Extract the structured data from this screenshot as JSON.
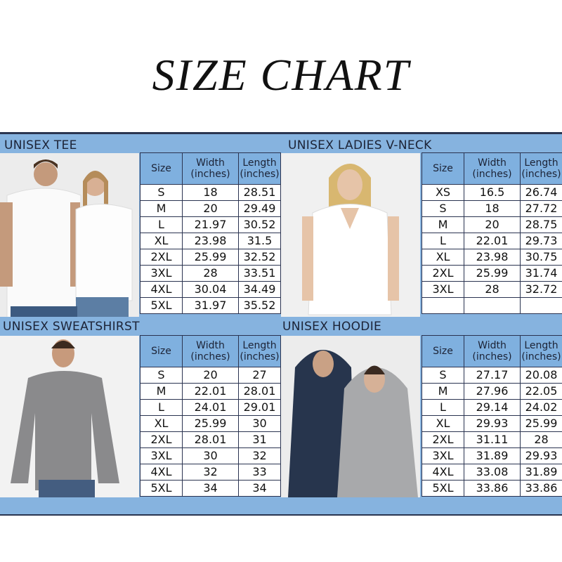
{
  "title": "SIZE CHART",
  "colors": {
    "band": "#86b3df",
    "header_cell": "#7fb0df",
    "border": "#2a3350"
  },
  "header": {
    "size": "Size",
    "width": "Width (inches)",
    "length": "Length (inches)"
  },
  "sections": [
    {
      "label": "UNISEX TEE",
      "photo": "couple-white-tees-photo",
      "rows": [
        [
          "S",
          "18",
          "28.51"
        ],
        [
          "M",
          "20",
          "29.49"
        ],
        [
          "L",
          "21.97",
          "30.52"
        ],
        [
          "XL",
          "23.98",
          "31.5"
        ],
        [
          "2XL",
          "25.99",
          "32.52"
        ],
        [
          "3XL",
          "28",
          "33.51"
        ],
        [
          "4XL",
          "30.04",
          "34.49"
        ],
        [
          "5XL",
          "31.97",
          "35.52"
        ]
      ]
    },
    {
      "label": "UNISEX LADIES V-NECK",
      "photo": "woman-white-vneck-photo",
      "rows": [
        [
          "XS",
          "16.5",
          "26.74"
        ],
        [
          "S",
          "18",
          "27.72"
        ],
        [
          "M",
          "20",
          "28.75"
        ],
        [
          "L",
          "22.01",
          "29.73"
        ],
        [
          "XL",
          "23.98",
          "30.75"
        ],
        [
          "2XL",
          "25.99",
          "31.74"
        ],
        [
          "3XL",
          "28",
          "32.72"
        ],
        [
          "",
          "",
          ""
        ]
      ]
    },
    {
      "label": "UNISEX SWEATSHIRST",
      "photo": "man-gray-sweatshirt-photo",
      "rows": [
        [
          "S",
          "20",
          "27"
        ],
        [
          "M",
          "22.01",
          "28.01"
        ],
        [
          "L",
          "24.01",
          "29.01"
        ],
        [
          "XL",
          "25.99",
          "30"
        ],
        [
          "2XL",
          "28.01",
          "31"
        ],
        [
          "3XL",
          "30",
          "32"
        ],
        [
          "4XL",
          "32",
          "33"
        ],
        [
          "5XL",
          "34",
          "34"
        ]
      ]
    },
    {
      "label": "UNISEX HOODIE",
      "photo": "couple-hoodies-photo",
      "rows": [
        [
          "S",
          "27.17",
          "20.08"
        ],
        [
          "M",
          "27.96",
          "22.05"
        ],
        [
          "L",
          "29.14",
          "24.02"
        ],
        [
          "XL",
          "29.93",
          "25.99"
        ],
        [
          "2XL",
          "31.11",
          "28"
        ],
        [
          "3XL",
          "31.89",
          "29.93"
        ],
        [
          "4XL",
          "33.08",
          "31.89"
        ],
        [
          "5XL",
          "33.86",
          "33.86"
        ]
      ]
    }
  ]
}
